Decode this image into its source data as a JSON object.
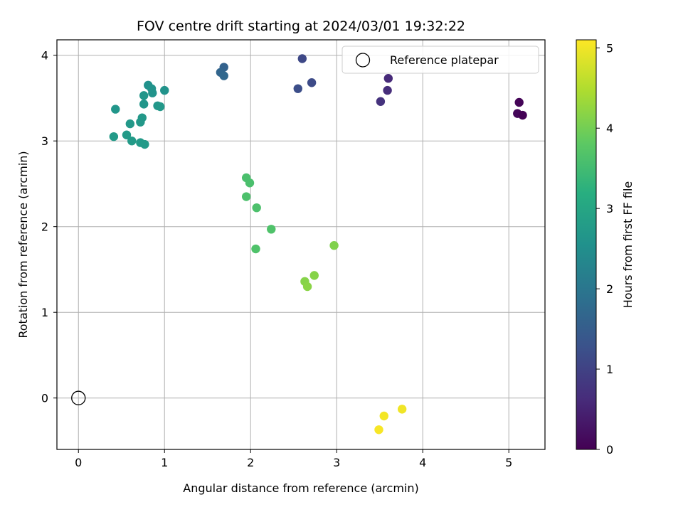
{
  "chart_data": {
    "type": "scatter",
    "title": "FOV centre drift starting at 2024/03/01 19:32:22",
    "xlabel": "Angular distance from reference (arcmin)",
    "ylabel": "Rotation from reference (arcmin)",
    "xlim": [
      -0.25,
      5.42
    ],
    "ylim": [
      -0.6,
      4.18
    ],
    "xticks": [
      0,
      1,
      2,
      3,
      4,
      5
    ],
    "yticks": [
      0,
      1,
      2,
      3,
      4
    ],
    "grid": true,
    "legend": {
      "placement": "top-right",
      "entries": [
        "Reference platepar"
      ]
    },
    "colorbar": {
      "label": "Hours from first FF file",
      "range": [
        0,
        5.1
      ],
      "ticks": [
        0,
        1,
        2,
        3,
        4,
        5
      ],
      "colormap": "viridis"
    },
    "reference_point": {
      "x": 0,
      "y": 0
    },
    "points": [
      {
        "x": 5.12,
        "y": 3.45,
        "c": 0.05
      },
      {
        "x": 5.1,
        "y": 3.32,
        "c": 0.08
      },
      {
        "x": 5.16,
        "y": 3.3,
        "c": 0.02
      },
      {
        "x": 3.6,
        "y": 3.73,
        "c": 0.6
      },
      {
        "x": 3.59,
        "y": 3.59,
        "c": 0.65
      },
      {
        "x": 3.51,
        "y": 3.46,
        "c": 0.72
      },
      {
        "x": 2.6,
        "y": 3.96,
        "c": 1.1
      },
      {
        "x": 2.71,
        "y": 3.68,
        "c": 1.15
      },
      {
        "x": 2.55,
        "y": 3.61,
        "c": 1.2
      },
      {
        "x": 1.69,
        "y": 3.86,
        "c": 1.6
      },
      {
        "x": 1.65,
        "y": 3.8,
        "c": 1.65
      },
      {
        "x": 1.69,
        "y": 3.76,
        "c": 1.7
      },
      {
        "x": 0.81,
        "y": 3.65,
        "c": 2.55
      },
      {
        "x": 0.85,
        "y": 3.61,
        "c": 2.6
      },
      {
        "x": 0.86,
        "y": 3.56,
        "c": 2.6
      },
      {
        "x": 0.76,
        "y": 3.53,
        "c": 2.65
      },
      {
        "x": 1.0,
        "y": 3.59,
        "c": 2.6
      },
      {
        "x": 0.76,
        "y": 3.43,
        "c": 2.65
      },
      {
        "x": 0.92,
        "y": 3.41,
        "c": 2.65
      },
      {
        "x": 0.95,
        "y": 3.4,
        "c": 2.7
      },
      {
        "x": 0.43,
        "y": 3.37,
        "c": 2.65
      },
      {
        "x": 0.74,
        "y": 3.27,
        "c": 2.7
      },
      {
        "x": 0.72,
        "y": 3.22,
        "c": 2.7
      },
      {
        "x": 0.6,
        "y": 3.2,
        "c": 2.7
      },
      {
        "x": 0.56,
        "y": 3.07,
        "c": 2.75
      },
      {
        "x": 0.41,
        "y": 3.05,
        "c": 2.75
      },
      {
        "x": 0.62,
        "y": 3.0,
        "c": 2.75
      },
      {
        "x": 0.72,
        "y": 2.98,
        "c": 2.75
      },
      {
        "x": 0.77,
        "y": 2.96,
        "c": 2.75
      },
      {
        "x": 1.95,
        "y": 2.57,
        "c": 3.6
      },
      {
        "x": 1.99,
        "y": 2.51,
        "c": 3.6
      },
      {
        "x": 1.95,
        "y": 2.35,
        "c": 3.62
      },
      {
        "x": 2.07,
        "y": 2.22,
        "c": 3.62
      },
      {
        "x": 2.24,
        "y": 1.97,
        "c": 3.65
      },
      {
        "x": 2.06,
        "y": 1.74,
        "c": 3.65
      },
      {
        "x": 2.97,
        "y": 1.78,
        "c": 4.1
      },
      {
        "x": 2.74,
        "y": 1.43,
        "c": 4.15
      },
      {
        "x": 2.63,
        "y": 1.36,
        "c": 4.15
      },
      {
        "x": 2.66,
        "y": 1.3,
        "c": 4.18
      },
      {
        "x": 3.76,
        "y": -0.13,
        "c": 5.0
      },
      {
        "x": 3.55,
        "y": -0.21,
        "c": 5.02
      },
      {
        "x": 3.49,
        "y": -0.37,
        "c": 5.05
      }
    ]
  }
}
